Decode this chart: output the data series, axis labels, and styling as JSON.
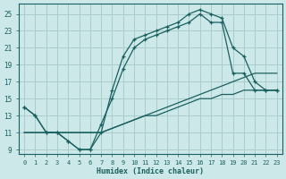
{
  "xlabel": "Humidex (Indice chaleur)",
  "bg_color": "#cce8e8",
  "line_color": "#1a6060",
  "grid_color": "#aacccc",
  "xlim": [
    -0.5,
    23.5
  ],
  "ylim": [
    8.5,
    26.2
  ],
  "xticks": [
    0,
    1,
    2,
    3,
    4,
    5,
    6,
    7,
    8,
    9,
    10,
    11,
    12,
    13,
    14,
    15,
    16,
    17,
    18,
    19,
    20,
    21,
    22,
    23
  ],
  "yticks": [
    9,
    11,
    13,
    15,
    17,
    19,
    21,
    23,
    25
  ],
  "series": [
    {
      "y": [
        14,
        13,
        11,
        11,
        10,
        9,
        9,
        11,
        16,
        20,
        22,
        22.5,
        23,
        23.5,
        24,
        25,
        25.5,
        25,
        24.5,
        21,
        20,
        17,
        16,
        16
      ],
      "marker": true
    },
    {
      "y": [
        14,
        13,
        11,
        11,
        10,
        9,
        9,
        12,
        15,
        18.5,
        21,
        22,
        22.5,
        23,
        23.5,
        24,
        25,
        24,
        24,
        18,
        18,
        16,
        16,
        16
      ],
      "marker": true
    },
    {
      "y": [
        11,
        11,
        11,
        11,
        11,
        11,
        11,
        11,
        11.5,
        12,
        12.5,
        13,
        13.5,
        14,
        14.5,
        15,
        15.5,
        16,
        16.5,
        17,
        17.5,
        18,
        18,
        18
      ],
      "marker": false
    },
    {
      "y": [
        11,
        11,
        11,
        11,
        11,
        11,
        11,
        11,
        11.5,
        12,
        12.5,
        13,
        13,
        13.5,
        14,
        14.5,
        15,
        15,
        15.5,
        15.5,
        16,
        16,
        16,
        16
      ],
      "marker": false
    }
  ]
}
